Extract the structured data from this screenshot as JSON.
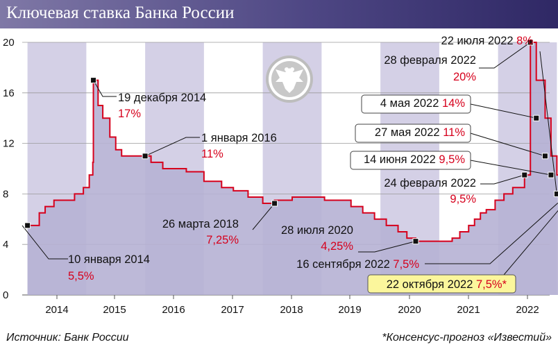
{
  "title": "Ключевая ставка Банка России",
  "source": "Источник: Банк России",
  "footnote": "*Консенсус-прогноз «Известий»",
  "colors": {
    "header": "#4e4784",
    "band": "#d4d0e6",
    "area": "#b6b1d4",
    "line": "#d6001c",
    "highlight": "#fbf69c"
  },
  "logo": "bank-of-russia-eagle-emblem",
  "chart_data": {
    "type": "line",
    "ylim": [
      0,
      20
    ],
    "yticks": [
      0,
      4,
      8,
      12,
      16,
      20
    ],
    "xlim": [
      2013.5,
      2023.0
    ],
    "xticks": [
      "2014",
      "2015",
      "2016",
      "2017",
      "2018",
      "2019",
      "2020",
      "2021",
      "2022"
    ],
    "grid": true,
    "series": [
      {
        "x": [
          2013.5,
          2013.62,
          2013.7,
          2013.8,
          2013.95,
          2014.1,
          2014.3,
          2014.45,
          2014.55,
          2014.61,
          2014.62,
          2014.7,
          2014.78,
          2014.9,
          2015.0,
          2015.1,
          2015.2,
          2015.4,
          2015.6,
          2015.8,
          2016.0,
          2016.2,
          2016.5,
          2016.8,
          2017.0,
          2017.25,
          2017.5,
          2017.7,
          2017.85,
          2018.0,
          2018.3,
          2018.55,
          2018.8,
          2019.0,
          2019.2,
          2019.4,
          2019.6,
          2019.8,
          2019.95,
          2020.1,
          2020.25,
          2020.4,
          2020.5,
          2020.62,
          2020.72,
          2020.85,
          2021.0,
          2021.1,
          2021.2,
          2021.3,
          2021.45,
          2021.6,
          2021.75,
          2021.95,
          2022.05,
          2022.15,
          2022.3,
          2022.4,
          2022.5,
          2022.57,
          2022.62,
          2022.67,
          2022.72,
          2022.8,
          2023.0
        ],
        "y": [
          5.5,
          5.5,
          6.5,
          7.0,
          7.5,
          7.5,
          8.0,
          8.5,
          9.5,
          10.5,
          17.0,
          15.0,
          14.0,
          12.5,
          11.5,
          11.0,
          11.0,
          11.0,
          10.5,
          10.0,
          10.0,
          9.75,
          9.0,
          8.5,
          8.25,
          7.75,
          7.25,
          7.5,
          7.5,
          7.75,
          7.75,
          7.5,
          7.5,
          7.0,
          6.5,
          6.0,
          5.5,
          5.0,
          4.5,
          4.25,
          4.25,
          4.25,
          4.25,
          4.25,
          4.5,
          5.0,
          5.5,
          6.0,
          6.5,
          6.75,
          7.5,
          8.0,
          8.5,
          9.5,
          20.0,
          17.0,
          14.0,
          11.0,
          9.5,
          8.0,
          7.5,
          7.5,
          7.5,
          7.5,
          7.5
        ]
      }
    ],
    "bands": [
      [
        "2014",
        2013.5,
        2014.5
      ],
      [
        "2016",
        2015.5,
        2016.5
      ],
      [
        "2018",
        2017.5,
        2018.5
      ],
      [
        "2020",
        2019.5,
        2020.5
      ],
      [
        "2022",
        2021.5,
        2022.5
      ]
    ],
    "annotations": [
      {
        "date": "10 января 2014",
        "rate": "5,5%"
      },
      {
        "date": "19 декабря 2014",
        "rate": "17%"
      },
      {
        "date": "1 января 2016",
        "rate": "11%"
      },
      {
        "date": "26 марта 2018",
        "rate": "7,25%"
      },
      {
        "date": "28 июля 2020",
        "rate": "4,25%"
      },
      {
        "date": "24 февраля 2022",
        "rate": "9,5%"
      },
      {
        "date": "28 февраля 2022",
        "rate": "20%"
      },
      {
        "date": "4 мая 2022",
        "rate": "14%"
      },
      {
        "date": "27 мая 2022",
        "rate": "11%"
      },
      {
        "date": "14 июня 2022",
        "rate": "9,5%"
      },
      {
        "date": "22 июля 2022",
        "rate": "8%"
      },
      {
        "date": "16 сентября 2022",
        "rate": "7,5%"
      },
      {
        "date": "22 октября 2022",
        "rate": "7,5%*"
      }
    ]
  }
}
